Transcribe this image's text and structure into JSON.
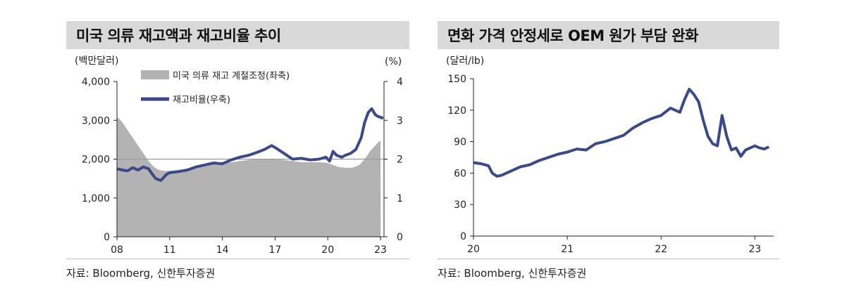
{
  "charts": [
    {
      "title": "미국 의류 재고액과 재고비율 추이",
      "source": "자료: Bloomberg, 신한투자증권"
    },
    {
      "title": "면화 가격 안정세로 OEM 원가 부담 완화",
      "source": "자료: Bloomberg, 신한투자증권"
    }
  ],
  "chart_data": [
    {
      "type": "area",
      "title": "미국 의류 재고액과 재고비율 추이",
      "y_left_unit": "(백만달러)",
      "y_right_unit": "(%)",
      "x_tick_labels": [
        "08",
        "11",
        "14",
        "17",
        "20",
        "23"
      ],
      "x_ticks": [
        2008,
        2011,
        2014,
        2017,
        2020,
        2023
      ],
      "xlim": [
        2008,
        2023.2
      ],
      "y_left_ticks": [
        "4,000",
        "3,000",
        "2,000",
        "1,000",
        "0"
      ],
      "y_left_tick_values": [
        4000,
        3000,
        2000,
        1000,
        0
      ],
      "ylim_left": [
        0,
        4000
      ],
      "y_right_ticks": [
        "4",
        "3",
        "2",
        "1",
        "0"
      ],
      "y_right_tick_values": [
        4,
        3,
        2,
        1,
        0
      ],
      "ylim_right": [
        0,
        4
      ],
      "reference_line_right": 2.0,
      "series": [
        {
          "name": "미국 의류 재고 계절조정(좌축)",
          "axis": "left",
          "style": "area",
          "color": "#b3b3b3",
          "x": [
            2008.0,
            2008.3,
            2008.6,
            2008.9,
            2009.2,
            2009.5,
            2009.8,
            2010.1,
            2010.4,
            2010.7,
            2011.0,
            2011.5,
            2012.0,
            2012.5,
            2013.0,
            2013.5,
            2014.0,
            2014.5,
            2015.0,
            2015.5,
            2016.0,
            2016.5,
            2017.0,
            2017.5,
            2018.0,
            2018.5,
            2019.0,
            2019.5,
            2020.0,
            2020.3,
            2020.6,
            2021.0,
            2021.4,
            2021.8,
            2022.1,
            2022.4,
            2022.7,
            2022.9,
            2023.0,
            2023.01
          ],
          "values": [
            3100,
            2950,
            2750,
            2550,
            2350,
            2150,
            1950,
            1800,
            1720,
            1700,
            1700,
            1720,
            1750,
            1800,
            1850,
            1870,
            1900,
            1920,
            1950,
            1980,
            2000,
            2000,
            2000,
            1980,
            1950,
            1920,
            1920,
            1920,
            1900,
            1850,
            1800,
            1780,
            1780,
            1850,
            2000,
            2200,
            2350,
            2450,
            2480,
            0
          ]
        },
        {
          "name": "재고비율(우축)",
          "axis": "right",
          "style": "line",
          "color": "#3b4a86",
          "x": [
            2008.0,
            2008.3,
            2008.6,
            2008.9,
            2009.2,
            2009.5,
            2009.8,
            2010.0,
            2010.2,
            2010.5,
            2010.8,
            2011.0,
            2011.5,
            2012.0,
            2012.5,
            2013.0,
            2013.5,
            2014.0,
            2014.5,
            2015.0,
            2015.5,
            2016.0,
            2016.4,
            2016.8,
            2017.0,
            2017.5,
            2018.0,
            2018.5,
            2019.0,
            2019.5,
            2019.9,
            2020.1,
            2020.3,
            2020.5,
            2020.8,
            2021.0,
            2021.3,
            2021.6,
            2021.9,
            2022.1,
            2022.3,
            2022.5,
            2022.7,
            2022.85,
            2023.0,
            2023.15
          ],
          "values": [
            1.75,
            1.72,
            1.7,
            1.78,
            1.72,
            1.8,
            1.75,
            1.62,
            1.5,
            1.45,
            1.6,
            1.65,
            1.68,
            1.72,
            1.8,
            1.85,
            1.9,
            1.88,
            1.98,
            2.05,
            2.1,
            2.18,
            2.25,
            2.35,
            2.3,
            2.15,
            2.0,
            2.02,
            1.98,
            2.0,
            2.05,
            1.95,
            2.2,
            2.1,
            2.05,
            2.1,
            2.15,
            2.25,
            2.55,
            2.95,
            3.2,
            3.3,
            3.15,
            3.1,
            3.08,
            3.05
          ]
        }
      ]
    },
    {
      "type": "line",
      "title": "면화 가격 안정세로 OEM 원가 부담 완화",
      "y_unit": "(달러/lb)",
      "x_tick_labels": [
        "20",
        "21",
        "22",
        "23"
      ],
      "x_ticks": [
        2020,
        2021,
        2022,
        2023
      ],
      "xlim": [
        2020,
        2023.2
      ],
      "y_ticks": [
        "150",
        "120",
        "90",
        "60",
        "30",
        "0"
      ],
      "y_tick_values": [
        150,
        120,
        90,
        60,
        30,
        0
      ],
      "ylim": [
        0,
        150
      ],
      "series": [
        {
          "name": "",
          "color": "#3b4a86",
          "x": [
            2020.0,
            2020.08,
            2020.16,
            2020.2,
            2020.25,
            2020.3,
            2020.4,
            2020.5,
            2020.6,
            2020.7,
            2020.8,
            2020.9,
            2021.0,
            2021.1,
            2021.2,
            2021.3,
            2021.4,
            2021.5,
            2021.6,
            2021.7,
            2021.8,
            2021.9,
            2022.0,
            2022.1,
            2022.2,
            2022.25,
            2022.3,
            2022.35,
            2022.4,
            2022.45,
            2022.5,
            2022.55,
            2022.6,
            2022.65,
            2022.7,
            2022.75,
            2022.8,
            2022.85,
            2022.9,
            2022.95,
            2023.0,
            2023.05,
            2023.1,
            2023.15
          ],
          "values": [
            70,
            69,
            67,
            60,
            57,
            58,
            62,
            66,
            68,
            72,
            75,
            78,
            80,
            83,
            82,
            88,
            90,
            93,
            96,
            103,
            108,
            112,
            115,
            122,
            118,
            130,
            140,
            135,
            128,
            110,
            95,
            88,
            86,
            115,
            95,
            82,
            84,
            76,
            82,
            84,
            86,
            84,
            83,
            85
          ]
        }
      ]
    }
  ]
}
